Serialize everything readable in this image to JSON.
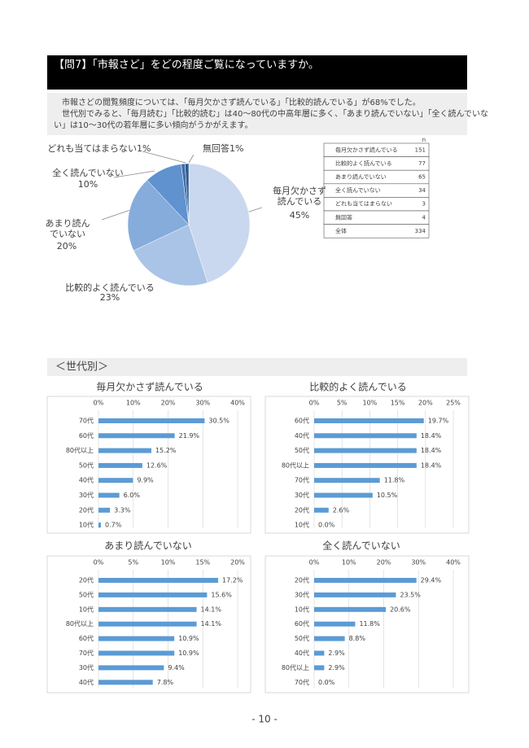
{
  "header": {
    "title": "【問7】「市報さど」をどの程度ご覧になっていますか。"
  },
  "intro": [
    "市報さどの閲覧頻度については、「毎月欠かさず読んでいる」「比較的読んでいる」が68%でした。",
    "世代別でみると、「毎月読む」「比較的読む」は40～80代の中高年層に多く、「あまり読んでいない」「全く読んでいな",
    "い」は10～30代の若年層に多い傾向がうかがえます。"
  ],
  "table": {
    "header": "n",
    "rows": [
      [
        "毎月欠かさず読んでいる",
        "151"
      ],
      [
        "比較的よく読んでいる",
        "77"
      ],
      [
        "あまり読んでいない",
        "65"
      ],
      [
        "全く読んでいない",
        "34"
      ],
      [
        "どれも当てはまらない",
        "3"
      ],
      [
        "無回答",
        "4"
      ],
      [
        "全体",
        "334"
      ]
    ]
  },
  "section_title": "＜世代別＞",
  "page_number": "- 10 -",
  "chart_data": [
    {
      "type": "pie",
      "categories": [
        "毎月欠かさず読んでいる",
        "比較的よく読んでいる",
        "あまり読んでいない",
        "全く読んでいない",
        "どれも当てはまらない",
        "無回答"
      ],
      "values": [
        45,
        23,
        20,
        10,
        1,
        1
      ],
      "value_labels": [
        "45%",
        "23%",
        "20%",
        "10%",
        "1%",
        "1%"
      ],
      "colors": [
        "#c9d8ee",
        "#a9c4e6",
        "#86acdc",
        "#5f92cf",
        "#3f6ea8",
        "#2f5b90"
      ]
    },
    {
      "type": "bar",
      "title": "毎月欠かさず読んでいる",
      "color": "#5b9bd5",
      "grid": true,
      "categories": [
        "70代",
        "60代",
        "80代以上",
        "50代",
        "40代",
        "30代",
        "20代",
        "10代"
      ],
      "values": [
        30.5,
        21.9,
        15.2,
        12.6,
        9.9,
        6.0,
        3.3,
        0.7
      ],
      "value_labels": [
        "30.5%",
        "21.9%",
        "15.2%",
        "12.6%",
        "9.9%",
        "6.0%",
        "3.3%",
        "0.7%"
      ],
      "xlim": [
        0,
        40
      ],
      "xticks": [
        {
          "value": 0,
          "label": "0%"
        },
        {
          "value": 10,
          "label": "10%"
        },
        {
          "value": 20,
          "label": "20%"
        },
        {
          "value": 30,
          "label": "30%"
        },
        {
          "value": 40,
          "label": "40%"
        }
      ]
    },
    {
      "type": "bar",
      "title": "比較的よく読んでいる",
      "color": "#5b9bd5",
      "grid": true,
      "categories": [
        "60代",
        "40代",
        "50代",
        "80代以上",
        "70代",
        "30代",
        "20代",
        "10代"
      ],
      "values": [
        19.7,
        18.4,
        18.4,
        18.4,
        11.8,
        10.5,
        2.6,
        0.0
      ],
      "value_labels": [
        "19.7%",
        "18.4%",
        "18.4%",
        "18.4%",
        "11.8%",
        "10.5%",
        "2.6%",
        "0.0%"
      ],
      "xlim": [
        0,
        25
      ],
      "xticks": [
        {
          "value": 0,
          "label": "0%"
        },
        {
          "value": 5,
          "label": "5%"
        },
        {
          "value": 10,
          "label": "10%"
        },
        {
          "value": 15,
          "label": "15%"
        },
        {
          "value": 20,
          "label": "20%"
        },
        {
          "value": 25,
          "label": "25%"
        }
      ]
    },
    {
      "type": "bar",
      "title": "あまり読んでいない",
      "color": "#5b9bd5",
      "grid": true,
      "categories": [
        "20代",
        "50代",
        "10代",
        "80代以上",
        "60代",
        "70代",
        "30代",
        "40代"
      ],
      "values": [
        17.2,
        15.6,
        14.1,
        14.1,
        10.9,
        10.9,
        9.4,
        7.8
      ],
      "value_labels": [
        "17.2%",
        "15.6%",
        "14.1%",
        "14.1%",
        "10.9%",
        "10.9%",
        "9.4%",
        "7.8%"
      ],
      "xlim": [
        0,
        20
      ],
      "xticks": [
        {
          "value": 0,
          "label": "0%"
        },
        {
          "value": 5,
          "label": "5%"
        },
        {
          "value": 10,
          "label": "10%"
        },
        {
          "value": 15,
          "label": "15%"
        },
        {
          "value": 20,
          "label": "20%"
        }
      ]
    },
    {
      "type": "bar",
      "title": "全く読んでいない",
      "color": "#5b9bd5",
      "grid": true,
      "categories": [
        "20代",
        "30代",
        "10代",
        "60代",
        "50代",
        "40代",
        "80代以上",
        "70代"
      ],
      "values": [
        29.4,
        23.5,
        20.6,
        11.8,
        8.8,
        2.9,
        2.9,
        0.0
      ],
      "value_labels": [
        "29.4%",
        "23.5%",
        "20.6%",
        "11.8%",
        "8.8%",
        "2.9%",
        "2.9%",
        "0.0%"
      ],
      "xlim": [
        0,
        40
      ],
      "xticks": [
        {
          "value": 0,
          "label": "0%"
        },
        {
          "value": 10,
          "label": "10%"
        },
        {
          "value": 20,
          "label": "20%"
        },
        {
          "value": 30,
          "label": "30%"
        },
        {
          "value": 40,
          "label": "40%"
        }
      ]
    }
  ]
}
